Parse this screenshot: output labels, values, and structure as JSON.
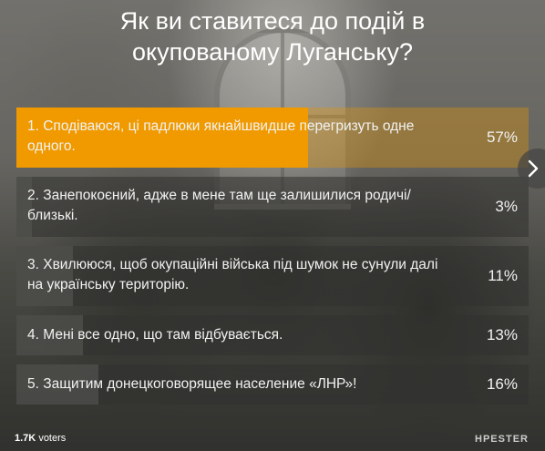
{
  "poll": {
    "title": "Як ви ставитеся до подій в окупованому Луганську?",
    "options": [
      {
        "label": "1. Сподіваюся, ці падлюки якнайшвидше перегризуть одне одного.",
        "percent_label": "57%",
        "percent": 57,
        "leader": true
      },
      {
        "label": "2. Занепокоєний, адже в мене там ще залишилися родичі/близькі.",
        "percent_label": "3%",
        "percent": 3,
        "leader": false
      },
      {
        "label": "3. Хвилююся, щоб окупаційні війська під шумок не сунули далі на українську територію.",
        "percent_label": "11%",
        "percent": 11,
        "leader": false
      },
      {
        "label": "4. Мені все одно, що там відбувається.",
        "percent_label": "13%",
        "percent": 13,
        "leader": false
      },
      {
        "label": "5. Защитим донецкоговорящее население «ЛНР»!",
        "percent_label": "16%",
        "percent": 16,
        "leader": false
      }
    ],
    "voters_count": "1.7K",
    "voters_label": "voters",
    "brand": "HPESTER",
    "next_icon": "chevron-right-icon"
  },
  "colors": {
    "leader_fill": "#f09a00",
    "text": "#ffffff"
  }
}
